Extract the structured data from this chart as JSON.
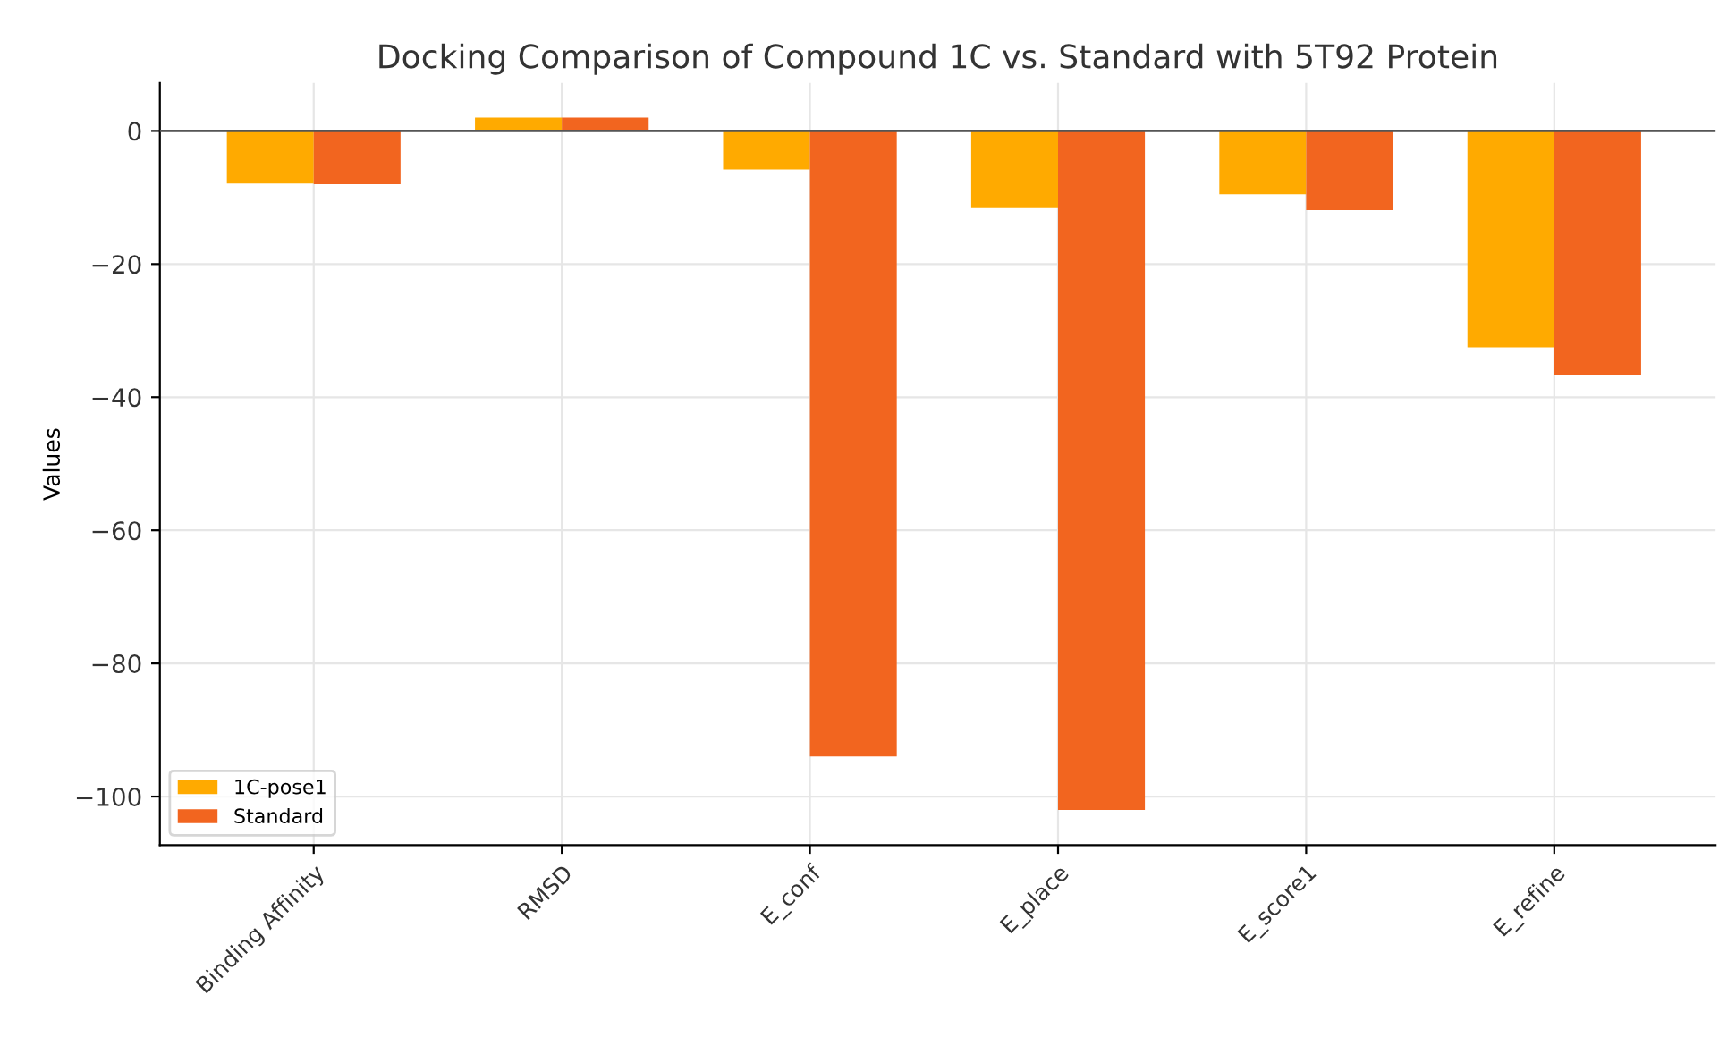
{
  "chart_data": {
    "type": "bar",
    "title": "Docking Comparison of Compound 1C vs. Standard with 5T92 Protein",
    "ylabel": "Values",
    "categories": [
      "Binding Affinity",
      "RMSD",
      "E_conf",
      "E_place",
      "E_score1",
      "E_refine"
    ],
    "series": [
      {
        "name": "1C-pose1",
        "color": "#ffaa00",
        "values": [
          -7.9,
          2.0,
          -5.8,
          -11.6,
          -9.5,
          -32.5
        ]
      },
      {
        "name": "Standard",
        "color": "#f2651f",
        "values": [
          -8.0,
          2.0,
          -94,
          -102,
          -11.9,
          -36.7
        ]
      }
    ],
    "ylim": [
      -107.3,
      7.2
    ],
    "yticks": [
      {
        "value": 0,
        "label": "0"
      },
      {
        "value": -20,
        "label": "−20"
      },
      {
        "value": -40,
        "label": "−40"
      },
      {
        "value": -60,
        "label": "−60"
      },
      {
        "value": -80,
        "label": "−80"
      },
      {
        "value": -100,
        "label": "−100"
      }
    ],
    "ref_lines": [
      {
        "axis": "y",
        "value": 0,
        "color": "#555555"
      }
    ],
    "grid": true,
    "legend": "bottom left"
  }
}
